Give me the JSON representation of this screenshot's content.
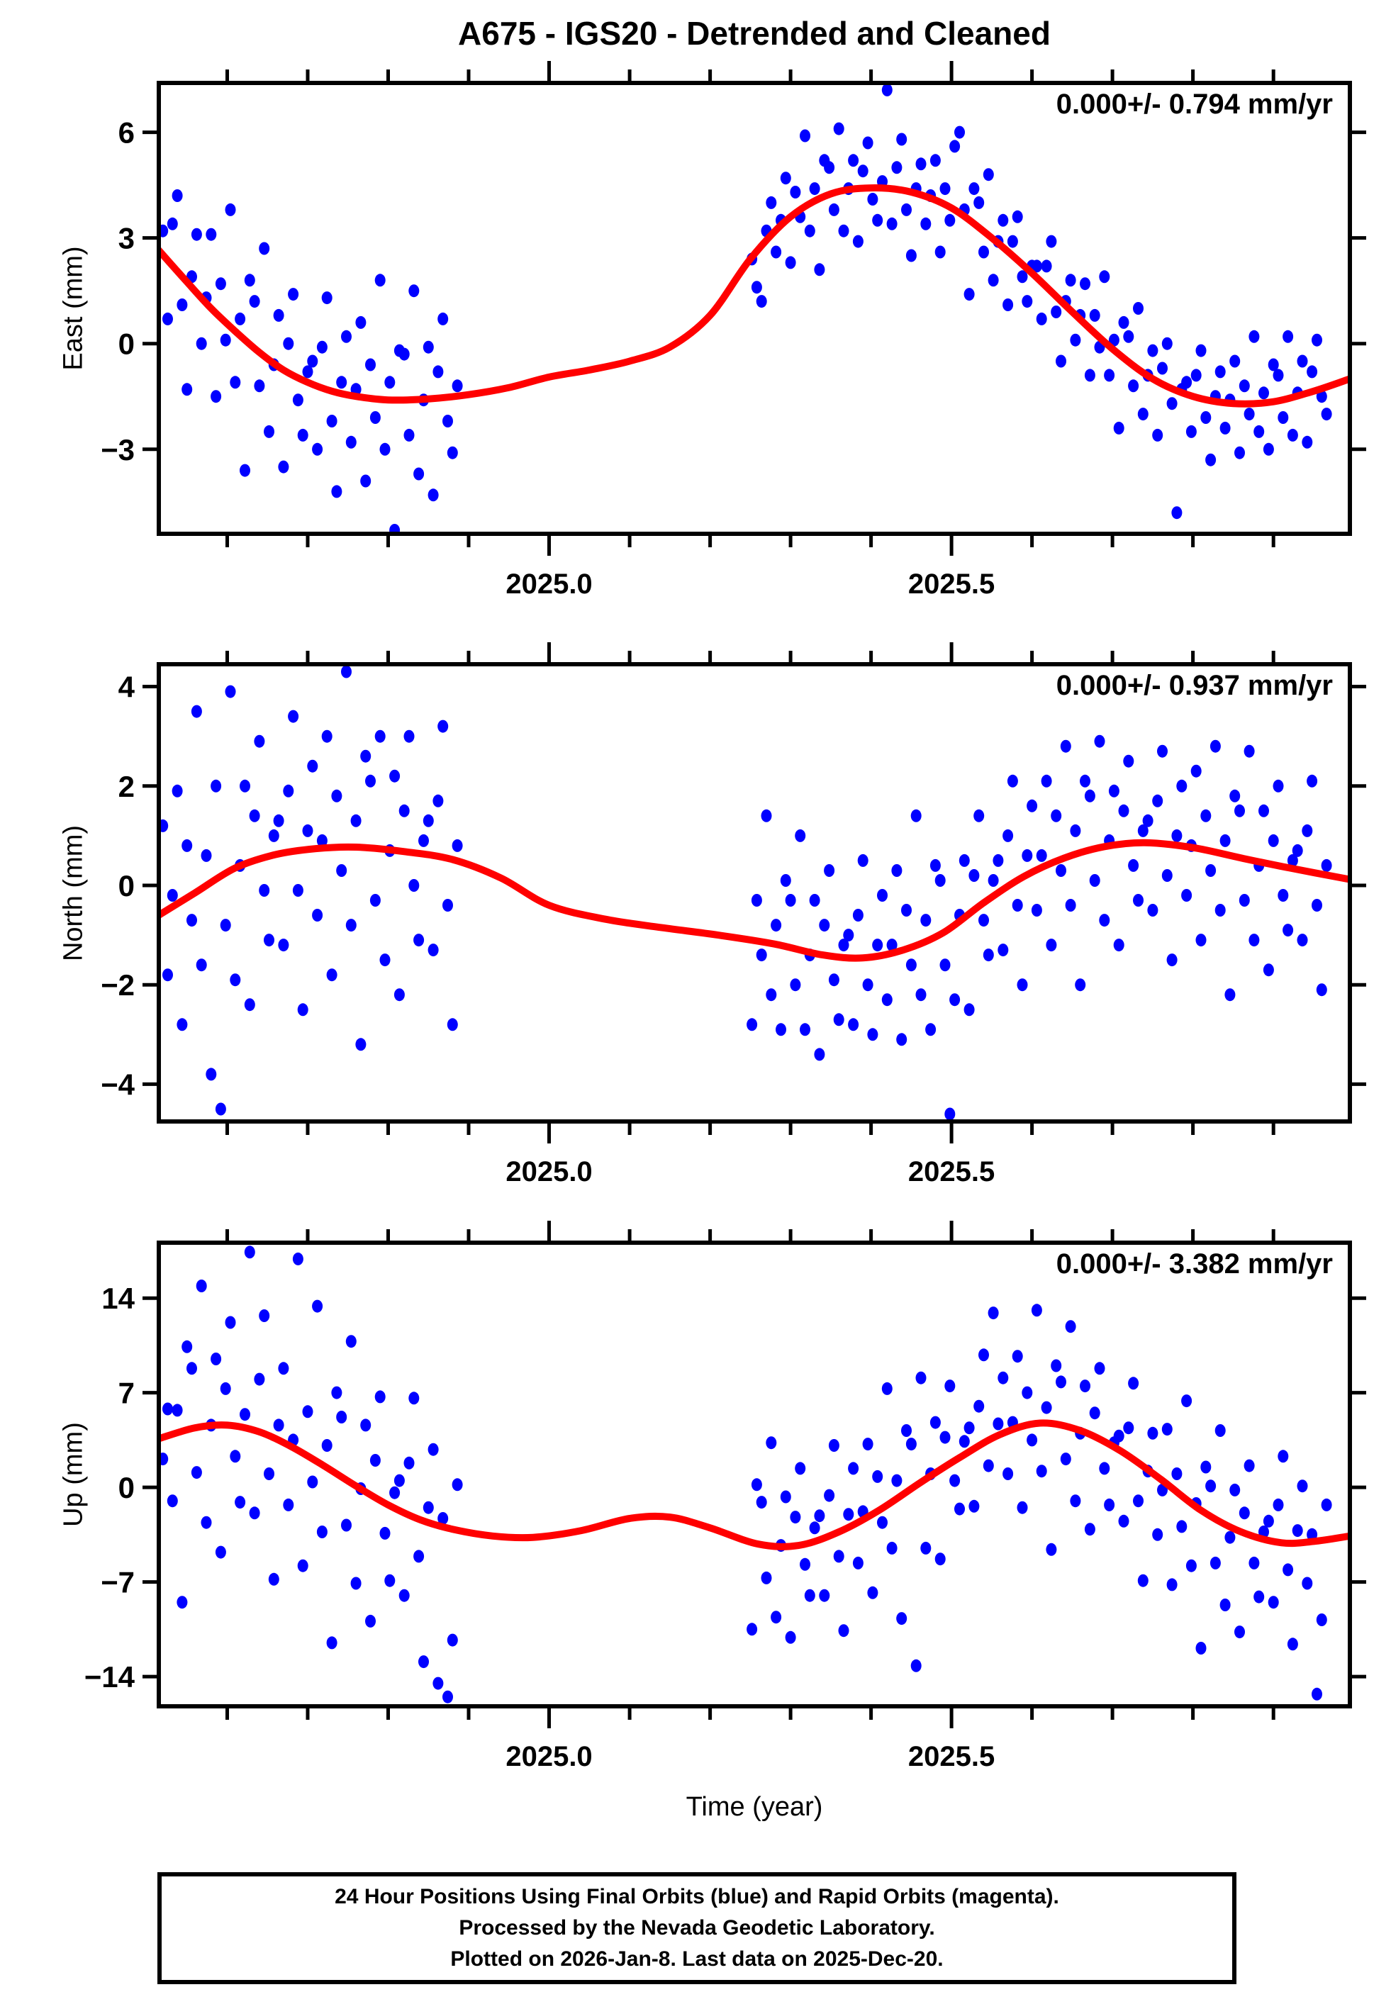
{
  "header": {
    "title": "A675 - IGS20 - Detrended and Cleaned"
  },
  "footer": {
    "lines": [
      "24 Hour Positions Using Final Orbits (blue) and Rapid Orbits (magenta).",
      "Processed by the Nevada Geodetic Laboratory.",
      "Plotted on 2026-Jan-8. Last data on 2025-Dec-20."
    ]
  },
  "chart_data": {
    "type": "scatter",
    "xlabel": "Time (year)",
    "xlim": [
      2024.515,
      2025.995
    ],
    "xticks_major": [
      {
        "value": 2025.0,
        "label": "2025.0"
      },
      {
        "value": 2025.5,
        "label": "2025.5"
      }
    ],
    "xticks_minor": [
      2024.6,
      2024.7,
      2024.8,
      2024.9,
      2025.0,
      2025.1,
      2025.2,
      2025.3,
      2025.4,
      2025.5,
      2025.6,
      2025.7,
      2025.8,
      2025.9
    ],
    "point_color": "#0000ff",
    "trend_color": "#ff0000",
    "x": [
      2024.52,
      2024.526,
      2024.532,
      2024.538,
      2024.544,
      2024.55,
      2024.556,
      2024.562,
      2024.568,
      2024.574,
      2024.58,
      2024.586,
      2024.592,
      2024.598,
      2024.604,
      2024.61,
      2024.616,
      2024.622,
      2024.628,
      2024.634,
      2024.64,
      2024.646,
      2024.652,
      2024.658,
      2024.664,
      2024.67,
      2024.676,
      2024.682,
      2024.688,
      2024.694,
      2024.7,
      2024.706,
      2024.712,
      2024.718,
      2024.724,
      2024.73,
      2024.736,
      2024.742,
      2024.748,
      2024.754,
      2024.76,
      2024.766,
      2024.772,
      2024.778,
      2024.784,
      2024.79,
      2024.796,
      2024.802,
      2024.808,
      2024.814,
      2024.82,
      2024.826,
      2024.832,
      2024.838,
      2024.844,
      2024.85,
      2024.856,
      2024.862,
      2024.868,
      2024.874,
      2024.88,
      2024.886,
      2025.252,
      2025.258,
      2025.264,
      2025.27,
      2025.276,
      2025.282,
      2025.288,
      2025.294,
      2025.3,
      2025.306,
      2025.312,
      2025.318,
      2025.324,
      2025.33,
      2025.336,
      2025.342,
      2025.348,
      2025.354,
      2025.36,
      2025.366,
      2025.372,
      2025.378,
      2025.384,
      2025.39,
      2025.396,
      2025.402,
      2025.408,
      2025.414,
      2025.42,
      2025.426,
      2025.432,
      2025.438,
      2025.444,
      2025.45,
      2025.456,
      2025.462,
      2025.468,
      2025.474,
      2025.48,
      2025.486,
      2025.492,
      2025.498,
      2025.504,
      2025.51,
      2025.516,
      2025.522,
      2025.528,
      2025.534,
      2025.54,
      2025.546,
      2025.552,
      2025.558,
      2025.564,
      2025.57,
      2025.576,
      2025.582,
      2025.588,
      2025.594,
      2025.6,
      2025.606,
      2025.612,
      2025.618,
      2025.624,
      2025.63,
      2025.636,
      2025.642,
      2025.648,
      2025.654,
      2025.66,
      2025.666,
      2025.672,
      2025.678,
      2025.684,
      2025.69,
      2025.696,
      2025.702,
      2025.708,
      2025.714,
      2025.72,
      2025.726,
      2025.732,
      2025.738,
      2025.744,
      2025.75,
      2025.756,
      2025.762,
      2025.768,
      2025.774,
      2025.78,
      2025.786,
      2025.792,
      2025.798,
      2025.804,
      2025.81,
      2025.816,
      2025.822,
      2025.828,
      2025.834,
      2025.84,
      2025.846,
      2025.852,
      2025.858,
      2025.864,
      2025.87,
      2025.876,
      2025.882,
      2025.888,
      2025.894,
      2025.9,
      2025.906,
      2025.912,
      2025.918,
      2025.924,
      2025.93,
      2025.936,
      2025.942,
      2025.948,
      2025.954,
      2025.96,
      2025.966
    ],
    "panels": [
      {
        "id": "east",
        "ylabel": "East (mm)",
        "annotation": "0.000+/- 0.794 mm/yr",
        "ylim": [
          -5.4,
          7.4
        ],
        "yticks": [
          -3,
          0,
          3,
          6
        ],
        "y": [
          3.2,
          0.7,
          3.4,
          4.2,
          1.1,
          -1.3,
          1.9,
          3.1,
          0.0,
          1.3,
          3.1,
          -1.5,
          1.7,
          0.1,
          3.8,
          -1.1,
          0.7,
          -3.6,
          1.8,
          1.2,
          -1.2,
          2.7,
          -2.5,
          -0.6,
          0.8,
          -3.5,
          0.0,
          1.4,
          -1.6,
          -2.6,
          -0.8,
          -0.5,
          -3.0,
          -0.1,
          1.3,
          -2.2,
          -4.2,
          -1.1,
          0.2,
          -2.8,
          -1.3,
          0.6,
          -3.9,
          -0.6,
          -2.1,
          1.8,
          -3.0,
          -1.1,
          -5.3,
          -0.2,
          -0.3,
          -2.6,
          1.5,
          -3.7,
          -1.6,
          -0.1,
          -4.3,
          -0.8,
          0.7,
          -2.2,
          -3.1,
          -1.2,
          2.4,
          1.6,
          1.2,
          3.2,
          4.0,
          2.6,
          3.5,
          4.7,
          2.3,
          4.3,
          3.6,
          5.9,
          3.2,
          4.4,
          2.1,
          5.2,
          5.0,
          3.8,
          6.1,
          3.2,
          4.4,
          5.2,
          2.9,
          4.9,
          5.7,
          4.1,
          3.5,
          4.6,
          7.2,
          3.4,
          5.0,
          5.8,
          3.8,
          2.5,
          4.4,
          5.1,
          3.4,
          4.2,
          5.2,
          2.6,
          4.4,
          3.5,
          5.6,
          6.0,
          3.8,
          1.4,
          4.4,
          4.0,
          2.6,
          4.8,
          1.8,
          2.9,
          3.5,
          1.1,
          2.9,
          3.6,
          1.9,
          1.2,
          2.2,
          2.2,
          0.7,
          2.2,
          2.9,
          0.9,
          -0.5,
          1.2,
          1.8,
          0.1,
          0.8,
          1.7,
          -0.9,
          0.8,
          -0.1,
          1.9,
          -0.9,
          0.1,
          -2.4,
          0.6,
          0.2,
          -1.2,
          1.0,
          -2.0,
          -0.9,
          -0.2,
          -2.6,
          -0.7,
          0.0,
          -1.7,
          -4.8,
          -1.3,
          -1.1,
          -2.5,
          -0.9,
          -0.2,
          -2.1,
          -3.3,
          -1.5,
          -0.8,
          -2.4,
          -1.6,
          -0.5,
          -3.1,
          -1.2,
          -2.0,
          0.2,
          -2.5,
          -1.4,
          -3.0,
          -0.6,
          -0.9,
          -2.1,
          0.2,
          -2.6,
          -1.4,
          -0.5,
          -2.8,
          -0.8,
          0.1,
          -1.5,
          -2.0
        ],
        "trend": [
          [
            2024.515,
            2.65
          ],
          [
            2024.55,
            1.75
          ],
          [
            2024.58,
            1.0
          ],
          [
            2024.61,
            0.35
          ],
          [
            2024.64,
            -0.25
          ],
          [
            2024.67,
            -0.75
          ],
          [
            2024.7,
            -1.1
          ],
          [
            2024.73,
            -1.35
          ],
          [
            2024.76,
            -1.5
          ],
          [
            2024.8,
            -1.6
          ],
          [
            2024.85,
            -1.57
          ],
          [
            2024.9,
            -1.45
          ],
          [
            2024.95,
            -1.25
          ],
          [
            2025.0,
            -0.95
          ],
          [
            2025.05,
            -0.75
          ],
          [
            2025.1,
            -0.5
          ],
          [
            2025.15,
            -0.1
          ],
          [
            2025.2,
            0.8
          ],
          [
            2025.25,
            2.4
          ],
          [
            2025.3,
            3.6
          ],
          [
            2025.35,
            4.25
          ],
          [
            2025.4,
            4.42
          ],
          [
            2025.45,
            4.3
          ],
          [
            2025.5,
            3.85
          ],
          [
            2025.55,
            3.0
          ],
          [
            2025.6,
            2.0
          ],
          [
            2025.65,
            0.9
          ],
          [
            2025.7,
            -0.15
          ],
          [
            2025.75,
            -1.0
          ],
          [
            2025.8,
            -1.5
          ],
          [
            2025.85,
            -1.7
          ],
          [
            2025.9,
            -1.65
          ],
          [
            2025.95,
            -1.35
          ],
          [
            2025.995,
            -1.0
          ]
        ]
      },
      {
        "id": "north",
        "ylabel": "North (mm)",
        "annotation": "0.000+/- 0.937 mm/yr",
        "ylim": [
          -4.75,
          4.45
        ],
        "yticks": [
          -4,
          -2,
          0,
          2,
          4
        ],
        "y": [
          1.2,
          -1.8,
          -0.2,
          1.9,
          -2.8,
          0.8,
          -0.7,
          3.5,
          -1.6,
          0.6,
          -3.8,
          2.0,
          -4.5,
          -0.8,
          3.9,
          -1.9,
          0.4,
          2.0,
          -2.4,
          1.4,
          2.9,
          -0.1,
          -1.1,
          1.0,
          1.3,
          -1.2,
          1.9,
          3.4,
          -0.1,
          -2.5,
          1.1,
          2.4,
          -0.6,
          0.9,
          3.0,
          -1.8,
          1.8,
          0.3,
          4.3,
          -0.8,
          1.3,
          -3.2,
          2.6,
          2.1,
          -0.3,
          3.0,
          -1.5,
          0.7,
          2.2,
          -2.2,
          1.5,
          3.0,
          0.0,
          -1.1,
          0.9,
          1.3,
          -1.3,
          1.7,
          3.2,
          -0.4,
          -2.8,
          0.8,
          -2.8,
          -0.3,
          -1.4,
          1.4,
          -2.2,
          -0.8,
          -2.9,
          0.1,
          -0.3,
          -2.0,
          1.0,
          -2.9,
          -1.4,
          -0.3,
          -3.4,
          -0.8,
          0.3,
          -1.9,
          -2.7,
          -1.2,
          -1.0,
          -2.8,
          -0.6,
          0.5,
          -2.0,
          -3.0,
          -1.2,
          -0.2,
          -2.3,
          -1.2,
          0.3,
          -3.1,
          -0.5,
          -1.6,
          1.4,
          -2.2,
          -0.7,
          -2.9,
          0.4,
          0.1,
          -1.6,
          -4.6,
          -2.3,
          -0.6,
          0.5,
          -2.5,
          0.2,
          1.4,
          -0.7,
          -1.4,
          0.1,
          0.5,
          -1.3,
          1.0,
          2.1,
          -0.4,
          -2.0,
          0.6,
          1.6,
          -0.5,
          0.6,
          2.1,
          -1.2,
          1.4,
          0.3,
          2.8,
          -0.4,
          1.1,
          -2.0,
          2.1,
          1.8,
          0.1,
          2.9,
          -0.7,
          0.9,
          1.9,
          -1.2,
          1.5,
          2.5,
          0.4,
          -0.3,
          1.1,
          1.3,
          -0.5,
          1.7,
          2.7,
          0.2,
          -1.5,
          1.0,
          2.0,
          -0.2,
          0.8,
          2.3,
          -1.1,
          1.4,
          0.3,
          2.8,
          -0.5,
          0.9,
          -2.2,
          1.8,
          1.5,
          -0.3,
          2.7,
          -1.1,
          0.4,
          1.5,
          -1.7,
          0.9,
          2.0,
          -0.2,
          -0.9,
          0.5,
          0.7,
          -1.1,
          1.1,
          2.1,
          -0.4,
          -2.1,
          0.4
        ],
        "trend": [
          [
            2024.515,
            -0.6
          ],
          [
            2024.56,
            -0.15
          ],
          [
            2024.61,
            0.35
          ],
          [
            2024.66,
            0.62
          ],
          [
            2024.71,
            0.74
          ],
          [
            2024.76,
            0.77
          ],
          [
            2024.82,
            0.68
          ],
          [
            2024.88,
            0.52
          ],
          [
            2024.94,
            0.15
          ],
          [
            2025.0,
            -0.4
          ],
          [
            2025.07,
            -0.68
          ],
          [
            2025.14,
            -0.85
          ],
          [
            2025.21,
            -1.0
          ],
          [
            2025.28,
            -1.18
          ],
          [
            2025.34,
            -1.4
          ],
          [
            2025.39,
            -1.46
          ],
          [
            2025.44,
            -1.3
          ],
          [
            2025.49,
            -0.95
          ],
          [
            2025.54,
            -0.35
          ],
          [
            2025.59,
            0.18
          ],
          [
            2025.64,
            0.55
          ],
          [
            2025.69,
            0.78
          ],
          [
            2025.74,
            0.86
          ],
          [
            2025.8,
            0.76
          ],
          [
            2025.86,
            0.55
          ],
          [
            2025.92,
            0.35
          ],
          [
            2025.995,
            0.12
          ]
        ]
      },
      {
        "id": "up",
        "ylabel": "Up (mm)",
        "annotation": "0.000+/- 3.382 mm/yr",
        "ylim": [
          -16.2,
          18.1
        ],
        "yticks": [
          -14,
          -7,
          0,
          7,
          14
        ],
        "y": [
          2.1,
          5.8,
          -1.0,
          5.7,
          -8.5,
          10.4,
          8.8,
          1.1,
          14.9,
          -2.6,
          4.6,
          9.5,
          -4.8,
          7.3,
          12.2,
          2.3,
          -1.1,
          5.4,
          17.4,
          -1.9,
          8.0,
          12.7,
          1.0,
          -6.8,
          4.6,
          8.8,
          -1.3,
          3.5,
          16.9,
          -5.8,
          5.6,
          0.4,
          13.4,
          -3.3,
          3.1,
          -11.5,
          7.0,
          5.2,
          -2.8,
          10.8,
          -7.1,
          -0.1,
          4.6,
          -9.9,
          2.0,
          6.7,
          -3.4,
          -6.9,
          -0.4,
          0.5,
          -8.0,
          1.8,
          6.6,
          -5.1,
          -12.9,
          -1.5,
          2.8,
          -14.5,
          -2.3,
          -15.5,
          -11.3,
          0.2,
          -10.5,
          0.2,
          -1.1,
          -6.7,
          3.3,
          -9.6,
          -4.3,
          -0.7,
          -11.1,
          -2.2,
          1.4,
          -5.7,
          -8.0,
          -3.0,
          -2.1,
          -8.0,
          -0.6,
          3.1,
          -5.1,
          -10.6,
          -2.0,
          1.4,
          -5.6,
          -1.8,
          3.2,
          -7.8,
          0.8,
          -2.6,
          7.3,
          -4.5,
          0.5,
          -9.7,
          4.2,
          3.2,
          -13.2,
          8.1,
          -4.5,
          1.0,
          4.8,
          -5.3,
          3.7,
          7.5,
          0.5,
          -1.6,
          3.4,
          4.4,
          -1.4,
          6.0,
          9.8,
          1.6,
          12.9,
          4.7,
          8.1,
          1.0,
          4.8,
          9.7,
          -1.5,
          7.0,
          3.5,
          13.1,
          1.2,
          5.9,
          -4.6,
          9.0,
          7.8,
          2.1,
          11.9,
          -1.0,
          4.0,
          7.5,
          -3.1,
          5.5,
          8.8,
          1.4,
          -1.3,
          3.3,
          3.8,
          -2.5,
          4.4,
          7.7,
          -1.0,
          -6.9,
          1.2,
          4.0,
          -3.5,
          -0.2,
          4.3,
          -7.2,
          1.0,
          -2.9,
          6.4,
          -5.8,
          -1.2,
          -11.9,
          1.5,
          0.1,
          -5.6,
          4.2,
          -8.7,
          -3.7,
          -0.2,
          -10.7,
          -1.9,
          1.6,
          -5.6,
          -8.1,
          -3.3,
          -2.5,
          -8.5,
          -1.3,
          2.3,
          -6.1,
          -11.6,
          -3.2,
          0.1,
          -7.1,
          -3.5,
          -15.3,
          -9.8,
          -1.3
        ],
        "trend": [
          [
            2024.515,
            3.6
          ],
          [
            2024.56,
            4.4
          ],
          [
            2024.6,
            4.6
          ],
          [
            2024.64,
            4.1
          ],
          [
            2024.68,
            3.0
          ],
          [
            2024.72,
            1.6
          ],
          [
            2024.76,
            0.1
          ],
          [
            2024.8,
            -1.3
          ],
          [
            2024.84,
            -2.4
          ],
          [
            2024.88,
            -3.1
          ],
          [
            2024.93,
            -3.6
          ],
          [
            2024.98,
            -3.7
          ],
          [
            2025.04,
            -3.2
          ],
          [
            2025.1,
            -2.3
          ],
          [
            2025.15,
            -2.2
          ],
          [
            2025.2,
            -3.0
          ],
          [
            2025.26,
            -4.2
          ],
          [
            2025.31,
            -4.3
          ],
          [
            2025.36,
            -3.3
          ],
          [
            2025.41,
            -1.7
          ],
          [
            2025.46,
            0.3
          ],
          [
            2025.51,
            2.2
          ],
          [
            2025.56,
            3.9
          ],
          [
            2025.61,
            4.75
          ],
          [
            2025.66,
            4.2
          ],
          [
            2025.71,
            2.7
          ],
          [
            2025.76,
            0.6
          ],
          [
            2025.81,
            -1.7
          ],
          [
            2025.86,
            -3.3
          ],
          [
            2025.91,
            -4.1
          ],
          [
            2025.95,
            -4.0
          ],
          [
            2025.995,
            -3.6
          ]
        ]
      }
    ]
  }
}
